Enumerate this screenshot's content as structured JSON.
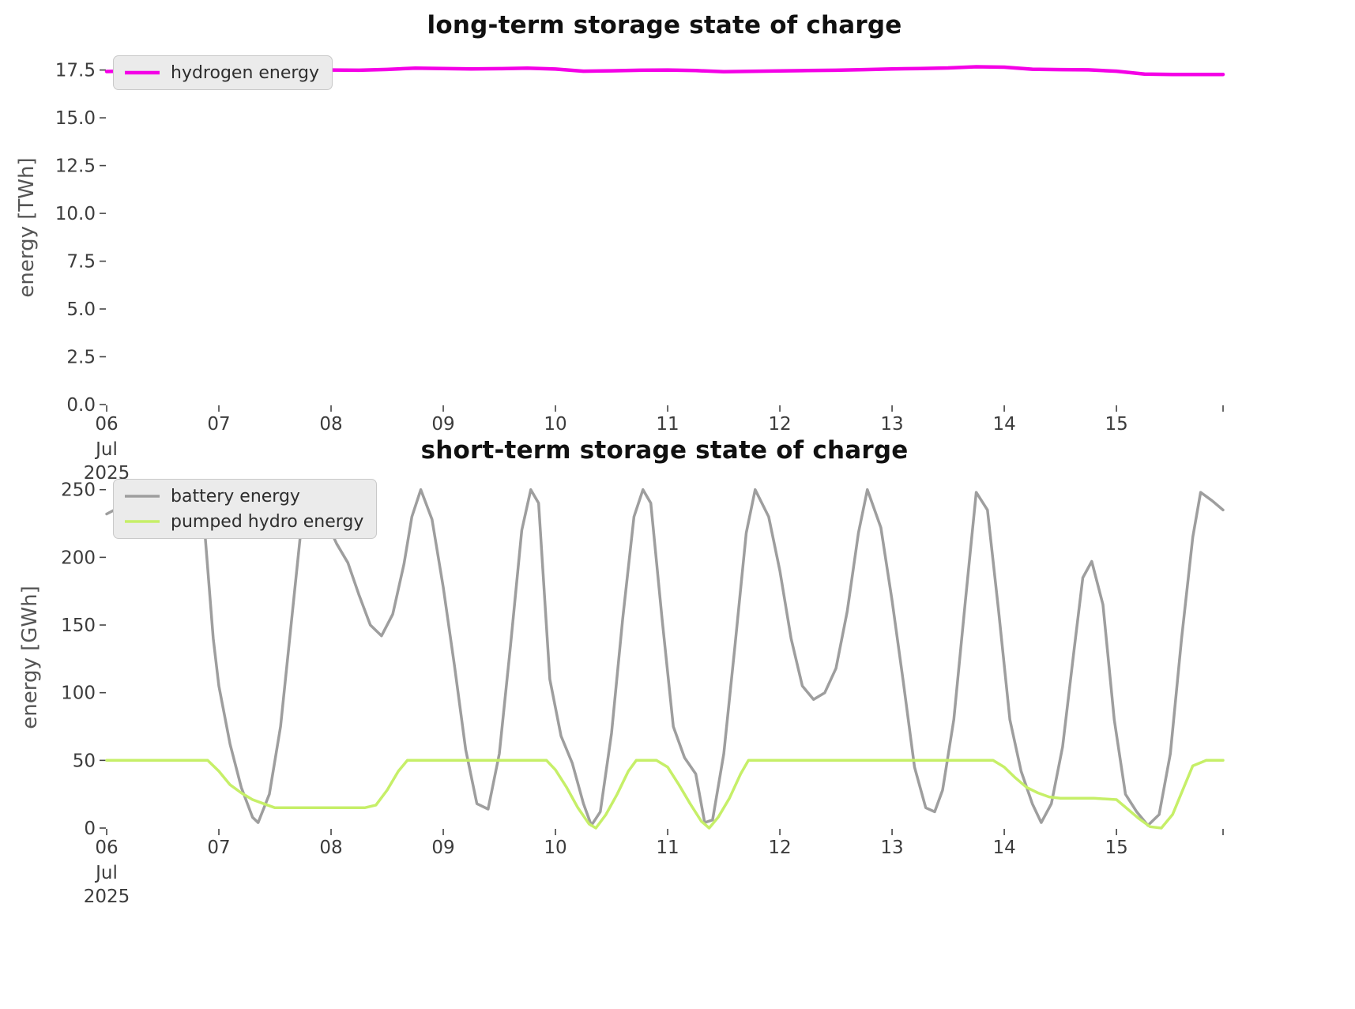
{
  "chart_data": [
    {
      "type": "line",
      "title": "long-term storage state of charge",
      "ylabel": "energy [TWh]",
      "xlabel": "",
      "x_axis": "date (Jul 2025)",
      "xlim": [
        6,
        15.95
      ],
      "ylim": [
        0,
        18.6
      ],
      "grid": false,
      "legend_position": "upper left",
      "xticks": [
        {
          "v": 6,
          "label": "06",
          "sub": [
            "Jul",
            "2025"
          ]
        },
        {
          "v": 7,
          "label": "07"
        },
        {
          "v": 8,
          "label": "08"
        },
        {
          "v": 9,
          "label": "09"
        },
        {
          "v": 10,
          "label": "10"
        },
        {
          "v": 11,
          "label": "11"
        },
        {
          "v": 12,
          "label": "12"
        },
        {
          "v": 13,
          "label": "13"
        },
        {
          "v": 14,
          "label": "14"
        },
        {
          "v": 15,
          "label": "15"
        }
      ],
      "yticks": [
        {
          "v": 0,
          "label": "0.0"
        },
        {
          "v": 2.5,
          "label": "2.5"
        },
        {
          "v": 5,
          "label": "5.0"
        },
        {
          "v": 7.5,
          "label": "7.5"
        },
        {
          "v": 10,
          "label": "10.0"
        },
        {
          "v": 12.5,
          "label": "12.5"
        },
        {
          "v": 15,
          "label": "15.0"
        },
        {
          "v": 17.5,
          "label": "17.5"
        }
      ],
      "series": [
        {
          "name": "hydrogen energy",
          "color": "#f400e6",
          "width": 4.5,
          "x": [
            6.0,
            6.25,
            6.5,
            6.75,
            7.0,
            7.25,
            7.5,
            7.75,
            8.0,
            8.25,
            8.5,
            8.75,
            9.0,
            9.25,
            9.5,
            9.75,
            10.0,
            10.25,
            10.5,
            10.75,
            11.0,
            11.25,
            11.5,
            11.75,
            12.0,
            12.25,
            12.5,
            12.75,
            13.0,
            13.25,
            13.5,
            13.75,
            14.0,
            14.25,
            14.5,
            14.75,
            15.0,
            15.25,
            15.5,
            15.75,
            15.95
          ],
          "y": [
            17.42,
            17.46,
            17.48,
            17.49,
            17.5,
            17.5,
            17.51,
            17.52,
            17.5,
            17.49,
            17.53,
            17.6,
            17.58,
            17.56,
            17.57,
            17.6,
            17.55,
            17.44,
            17.46,
            17.49,
            17.5,
            17.47,
            17.41,
            17.43,
            17.45,
            17.47,
            17.49,
            17.52,
            17.56,
            17.58,
            17.61,
            17.67,
            17.65,
            17.54,
            17.52,
            17.51,
            17.44,
            17.29,
            17.27,
            17.27,
            17.27
          ]
        }
      ]
    },
    {
      "type": "line",
      "title": "short-term storage state of charge",
      "ylabel": "energy [GWh]",
      "xlabel": "",
      "x_axis": "date (Jul 2025)",
      "xlim": [
        6,
        15.95
      ],
      "ylim": [
        0,
        258
      ],
      "grid": false,
      "legend_position": "upper left",
      "xticks": [
        {
          "v": 6,
          "label": "06",
          "sub": [
            "Jul",
            "2025"
          ]
        },
        {
          "v": 7,
          "label": "07"
        },
        {
          "v": 8,
          "label": "08"
        },
        {
          "v": 9,
          "label": "09"
        },
        {
          "v": 10,
          "label": "10"
        },
        {
          "v": 11,
          "label": "11"
        },
        {
          "v": 12,
          "label": "12"
        },
        {
          "v": 13,
          "label": "13"
        },
        {
          "v": 14,
          "label": "14"
        },
        {
          "v": 15,
          "label": "15"
        }
      ],
      "yticks": [
        {
          "v": 0,
          "label": "0"
        },
        {
          "v": 50,
          "label": "50"
        },
        {
          "v": 100,
          "label": "100"
        },
        {
          "v": 150,
          "label": "150"
        },
        {
          "v": 200,
          "label": "200"
        },
        {
          "v": 250,
          "label": "250"
        }
      ],
      "series": [
        {
          "name": "battery energy",
          "color": "#9e9e9e",
          "width": 3.5,
          "x": [
            6.0,
            6.3,
            6.6,
            6.75,
            6.85,
            6.95,
            7.0,
            7.1,
            7.2,
            7.3,
            7.35,
            7.45,
            7.55,
            7.65,
            7.75,
            7.85,
            7.95,
            8.05,
            8.15,
            8.25,
            8.35,
            8.45,
            8.55,
            8.65,
            8.72,
            8.8,
            8.9,
            9.0,
            9.1,
            9.2,
            9.3,
            9.4,
            9.5,
            9.6,
            9.7,
            9.78,
            9.85,
            9.95,
            10.05,
            10.15,
            10.25,
            10.32,
            10.4,
            10.5,
            10.6,
            10.7,
            10.78,
            10.85,
            10.95,
            11.05,
            11.15,
            11.25,
            11.33,
            11.4,
            11.5,
            11.6,
            11.7,
            11.78,
            11.9,
            12.0,
            12.1,
            12.2,
            12.3,
            12.4,
            12.5,
            12.6,
            12.7,
            12.78,
            12.9,
            13.0,
            13.1,
            13.2,
            13.3,
            13.38,
            13.45,
            13.55,
            13.65,
            13.75,
            13.85,
            13.95,
            14.05,
            14.15,
            14.25,
            14.33,
            14.42,
            14.52,
            14.62,
            14.7,
            14.78,
            14.88,
            14.98,
            15.08,
            15.18,
            15.28,
            15.38,
            15.48,
            15.58,
            15.68,
            15.75,
            15.85,
            15.95
          ],
          "y": [
            232,
            245,
            250,
            250,
            245,
            140,
            105,
            62,
            30,
            8,
            4,
            25,
            75,
            155,
            235,
            250,
            228,
            210,
            196,
            172,
            150,
            142,
            158,
            195,
            230,
            250,
            228,
            178,
            120,
            58,
            18,
            14,
            55,
            135,
            220,
            250,
            240,
            110,
            68,
            48,
            18,
            2,
            12,
            70,
            155,
            230,
            250,
            240,
            155,
            75,
            52,
            40,
            4,
            6,
            55,
            135,
            218,
            250,
            230,
            190,
            140,
            105,
            95,
            100,
            118,
            160,
            218,
            250,
            222,
            168,
            108,
            45,
            15,
            12,
            28,
            80,
            165,
            248,
            235,
            160,
            80,
            42,
            18,
            4,
            18,
            60,
            130,
            185,
            197,
            165,
            80,
            25,
            12,
            2,
            10,
            55,
            140,
            215,
            248,
            242,
            235
          ]
        },
        {
          "name": "pumped hydro energy",
          "color": "#c6ef68",
          "width": 3.5,
          "x": [
            6.0,
            6.9,
            7.0,
            7.1,
            7.2,
            7.3,
            7.4,
            7.5,
            7.7,
            8.0,
            8.3,
            8.4,
            8.5,
            8.6,
            8.68,
            9.0,
            9.5,
            9.92,
            10.0,
            10.1,
            10.2,
            10.3,
            10.36,
            10.45,
            10.55,
            10.65,
            10.72,
            10.9,
            11.0,
            11.1,
            11.2,
            11.3,
            11.37,
            11.45,
            11.55,
            11.65,
            11.72,
            12.0,
            12.5,
            13.0,
            13.5,
            13.9,
            14.0,
            14.1,
            14.2,
            14.3,
            14.4,
            14.5,
            14.8,
            15.0,
            15.1,
            15.2,
            15.3,
            15.4,
            15.5,
            15.6,
            15.68,
            15.8,
            15.95
          ],
          "y": [
            50,
            50,
            42,
            32,
            26,
            21,
            18,
            15,
            15,
            15,
            15,
            17,
            28,
            42,
            50,
            50,
            50,
            50,
            43,
            30,
            15,
            3,
            0,
            10,
            25,
            42,
            50,
            50,
            45,
            32,
            18,
            5,
            0,
            8,
            22,
            40,
            50,
            50,
            50,
            50,
            50,
            50,
            45,
            37,
            30,
            26,
            23,
            22,
            22,
            21,
            14,
            7,
            1,
            0,
            10,
            30,
            46,
            50,
            50
          ]
        }
      ]
    }
  ]
}
